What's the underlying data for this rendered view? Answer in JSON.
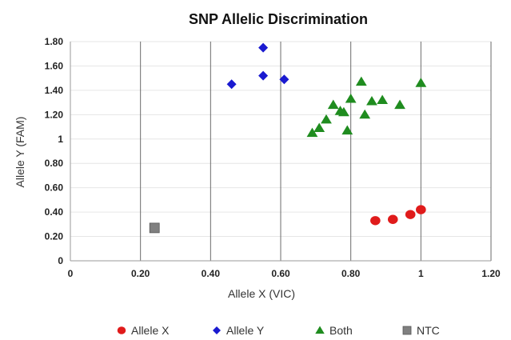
{
  "chart_data": {
    "type": "scatter",
    "title": "SNP Allelic Discrimination",
    "xlabel": "Allele X (VIC)",
    "ylabel": "Allele Y (FAM)",
    "xlim": [
      0,
      1.2
    ],
    "ylim": [
      0,
      1.8
    ],
    "x_ticks": [
      0,
      0.2,
      0.4,
      0.6,
      0.8,
      1,
      1.2
    ],
    "x_tick_labels": [
      "0",
      "0.20",
      "0.40",
      "0.60",
      "0.80",
      "1",
      "1.20"
    ],
    "y_ticks": [
      0,
      0.2,
      0.4,
      0.6,
      0.8,
      1,
      1.2,
      1.4,
      1.6,
      1.8
    ],
    "y_tick_labels": [
      "0",
      "0.20",
      "0.40",
      "0.60",
      "0.80",
      "1",
      "1.20",
      "1.40",
      "1.60",
      "1.80"
    ],
    "grid": "vertical",
    "legend_position": "bottom",
    "series": [
      {
        "name": "Allele X",
        "marker": "circle",
        "color": "#e01b1b",
        "points": [
          [
            0.87,
            0.33
          ],
          [
            0.92,
            0.34
          ],
          [
            0.97,
            0.38
          ],
          [
            1.0,
            0.42
          ]
        ]
      },
      {
        "name": "Allele Y",
        "marker": "diamond",
        "color": "#1a1ad0",
        "points": [
          [
            0.46,
            1.45
          ],
          [
            0.55,
            1.52
          ],
          [
            0.55,
            1.75
          ],
          [
            0.61,
            1.49
          ]
        ]
      },
      {
        "name": "Both",
        "marker": "triangle",
        "color": "#1f8c1f",
        "points": [
          [
            0.69,
            1.05
          ],
          [
            0.71,
            1.09
          ],
          [
            0.73,
            1.16
          ],
          [
            0.75,
            1.28
          ],
          [
            0.77,
            1.23
          ],
          [
            0.78,
            1.22
          ],
          [
            0.79,
            1.07
          ],
          [
            0.8,
            1.33
          ],
          [
            0.83,
            1.47
          ],
          [
            0.84,
            1.2
          ],
          [
            0.86,
            1.31
          ],
          [
            0.89,
            1.32
          ],
          [
            0.94,
            1.28
          ],
          [
            1.0,
            1.46
          ]
        ]
      },
      {
        "name": "NTC",
        "marker": "square",
        "color": "#808080",
        "points": [
          [
            0.24,
            0.27
          ]
        ]
      }
    ]
  }
}
